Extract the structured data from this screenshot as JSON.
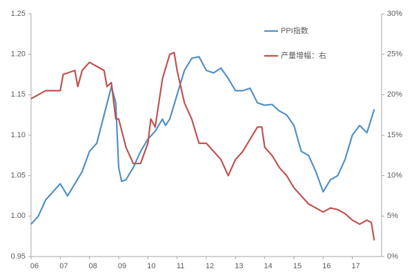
{
  "chart_data": {
    "type": "line",
    "xlim": [
      2006,
      2018
    ],
    "xticks": [
      {
        "value": 2006,
        "label": "06"
      },
      {
        "value": 2007,
        "label": "07"
      },
      {
        "value": 2008,
        "label": "08"
      },
      {
        "value": 2009,
        "label": "09"
      },
      {
        "value": 2010,
        "label": "10"
      },
      {
        "value": 2011,
        "label": "11"
      },
      {
        "value": 2012,
        "label": "12"
      },
      {
        "value": 2013,
        "label": "13"
      },
      {
        "value": 2014,
        "label": "14"
      },
      {
        "value": 2015,
        "label": "15"
      },
      {
        "value": 2016,
        "label": "16"
      },
      {
        "value": 2017,
        "label": "17"
      }
    ],
    "ylim": [
      0.95,
      1.25
    ],
    "yticks": [
      0.95,
      {
        "value": 1,
        "label": "1.00"
      },
      1.05,
      {
        "value": 1.1,
        "label": "1.10"
      },
      1.15,
      {
        "value": 1.2,
        "label": "1.20"
      },
      1.25
    ],
    "y2lim": [
      0,
      30
    ],
    "y2ticks": [
      {
        "value": 0,
        "label": "0%"
      },
      {
        "value": 5,
        "label": "5%"
      },
      {
        "value": 10,
        "label": "10%"
      },
      {
        "value": 15,
        "label": "15%"
      },
      {
        "value": 20,
        "label": "20%"
      },
      {
        "value": 25,
        "label": "25%"
      },
      {
        "value": 30,
        "label": "30%"
      }
    ],
    "legend": "top-right",
    "series": [
      {
        "name": "PPI指数",
        "color": "#4f8fc6",
        "x": [
          2006,
          2006.25,
          2006.5,
          2006.75,
          2007,
          2007.25,
          2007.5,
          2007.75,
          2008,
          2008.25,
          2008.5,
          2008.75,
          2008.9,
          2009,
          2009.1,
          2009.25,
          2009.5,
          2009.75,
          2010,
          2010.25,
          2010.5,
          2010.6,
          2010.75,
          2011,
          2011.25,
          2011.5,
          2011.75,
          2012,
          2012.25,
          2012.5,
          2012.75,
          2013,
          2013.25,
          2013.5,
          2013.75,
          2014,
          2014.25,
          2014.5,
          2014.75,
          2015,
          2015.25,
          2015.5,
          2015.75,
          2016,
          2016.25,
          2016.5,
          2016.75,
          2017,
          2017.25,
          2017.5,
          2017.75
        ],
        "values": [
          0.99,
          1.0,
          1.02,
          1.03,
          1.04,
          1.025,
          1.04,
          1.055,
          1.08,
          1.09,
          1.125,
          1.16,
          1.14,
          1.06,
          1.043,
          1.045,
          1.06,
          1.08,
          1.095,
          1.105,
          1.12,
          1.112,
          1.12,
          1.15,
          1.18,
          1.195,
          1.197,
          1.18,
          1.177,
          1.183,
          1.17,
          1.155,
          1.155,
          1.158,
          1.14,
          1.137,
          1.138,
          1.13,
          1.125,
          1.112,
          1.08,
          1.075,
          1.055,
          1.03,
          1.045,
          1.05,
          1.07,
          1.1,
          1.112,
          1.103,
          1.132
        ]
      },
      {
        "name": "产量增幅：右",
        "color": "#c0504d",
        "axis": "y2",
        "x": [
          2006,
          2006.25,
          2006.5,
          2006.75,
          2007,
          2007.1,
          2007.5,
          2007.6,
          2007.75,
          2008,
          2008.25,
          2008.5,
          2008.6,
          2008.75,
          2008.9,
          2009,
          2009.25,
          2009.5,
          2009.75,
          2010,
          2010.1,
          2010.25,
          2010.5,
          2010.75,
          2010.9,
          2011,
          2011.25,
          2011.5,
          2011.75,
          2012,
          2012.25,
          2012.5,
          2012.75,
          2013,
          2013.25,
          2013.5,
          2013.75,
          2013.9,
          2014,
          2014.25,
          2014.5,
          2014.75,
          2015,
          2015.25,
          2015.5,
          2015.75,
          2016,
          2016.25,
          2016.5,
          2016.75,
          2017,
          2017.25,
          2017.5,
          2017.65,
          2017.75
        ],
        "values": [
          19.5,
          20,
          20.5,
          20.5,
          20.5,
          22.5,
          23,
          21,
          23,
          24,
          23.5,
          23,
          21,
          21.5,
          17,
          17,
          13.5,
          11.5,
          11.5,
          14,
          17,
          16,
          22,
          25,
          25.2,
          23,
          19,
          17,
          14,
          14,
          13,
          12,
          10,
          12,
          13,
          14.5,
          16,
          16,
          13.5,
          12.5,
          11,
          10,
          8.5,
          7.5,
          6.5,
          6,
          5.5,
          6,
          5.8,
          5.3,
          4.5,
          4,
          4.5,
          4.2,
          2
        ]
      }
    ]
  }
}
